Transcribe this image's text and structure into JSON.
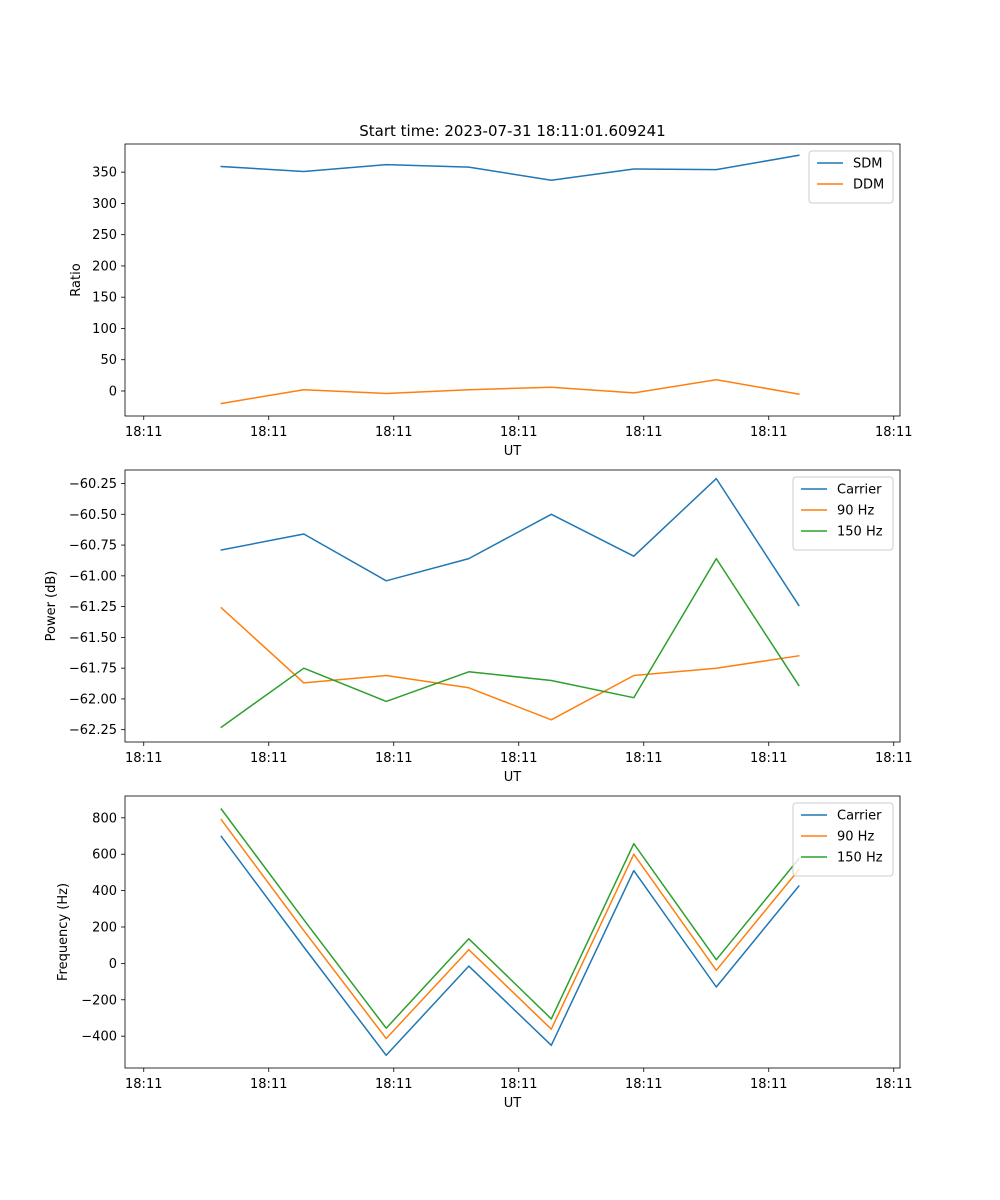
{
  "figure": {
    "title": "Start time: 2023-07-31 18:11:01.609241"
  },
  "chart_data": [
    {
      "type": "line",
      "xlabel": "UT",
      "ylabel": "Ratio",
      "x": [
        0.62,
        1.28,
        1.94,
        2.6,
        3.26,
        3.92,
        4.58,
        5.24
      ],
      "xlim": [
        -0.15,
        6.05
      ],
      "xticks": [
        0,
        1,
        2,
        3,
        4,
        5,
        6
      ],
      "xtick_labels": [
        "18:11",
        "18:11",
        "18:11",
        "18:11",
        "18:11",
        "18:11",
        "18:11"
      ],
      "ylim": [
        -40,
        395
      ],
      "yticks": [
        0,
        50,
        100,
        150,
        200,
        250,
        300,
        350
      ],
      "ytick_labels": [
        "0",
        "50",
        "100",
        "150",
        "200",
        "250",
        "300",
        "350"
      ],
      "legend": "top-right",
      "series": [
        {
          "name": "SDM",
          "color": "#1f77b4",
          "values": [
            359,
            351,
            362,
            358,
            337,
            355,
            354,
            377
          ]
        },
        {
          "name": "DDM",
          "color": "#ff7f0e",
          "values": [
            -20,
            2,
            -4,
            2,
            6,
            -3,
            18,
            -5
          ]
        }
      ]
    },
    {
      "type": "line",
      "xlabel": "UT",
      "ylabel": "Power (dB)",
      "x": [
        0.62,
        1.28,
        1.94,
        2.6,
        3.26,
        3.92,
        4.58,
        5.24
      ],
      "xlim": [
        -0.15,
        6.05
      ],
      "xticks": [
        0,
        1,
        2,
        3,
        4,
        5,
        6
      ],
      "xtick_labels": [
        "18:11",
        "18:11",
        "18:11",
        "18:11",
        "18:11",
        "18:11",
        "18:11"
      ],
      "ylim": [
        -62.35,
        -60.14
      ],
      "yticks": [
        -62.25,
        -62.0,
        -61.75,
        -61.5,
        -61.25,
        -61.0,
        -60.75,
        -60.5,
        -60.25
      ],
      "ytick_labels": [
        "−62.25",
        "−62.00",
        "−61.75",
        "−61.50",
        "−61.25",
        "−61.00",
        "−60.75",
        "−60.50",
        "−60.25"
      ],
      "legend": "top-right",
      "series": [
        {
          "name": "Carrier",
          "color": "#1f77b4",
          "values": [
            -60.79,
            -60.66,
            -61.04,
            -60.86,
            -60.5,
            -60.84,
            -60.21,
            -61.24
          ]
        },
        {
          "name": "90 Hz",
          "color": "#ff7f0e",
          "values": [
            -61.26,
            -61.87,
            -61.81,
            -61.91,
            -62.17,
            -61.81,
            -61.75,
            -61.65
          ]
        },
        {
          "name": "150 Hz",
          "color": "#2ca02c",
          "values": [
            -62.23,
            -61.75,
            -62.02,
            -61.78,
            -61.85,
            -61.99,
            -60.86,
            -61.89
          ]
        }
      ]
    },
    {
      "type": "line",
      "xlabel": "UT",
      "ylabel": "Frequency (Hz)",
      "x": [
        0.62,
        1.28,
        1.94,
        2.6,
        3.26,
        3.92,
        4.58,
        5.24
      ],
      "xlim": [
        -0.15,
        6.05
      ],
      "xticks": [
        0,
        1,
        2,
        3,
        4,
        5,
        6
      ],
      "xtick_labels": [
        "18:11",
        "18:11",
        "18:11",
        "18:11",
        "18:11",
        "18:11",
        "18:11"
      ],
      "ylim": [
        -575,
        920
      ],
      "yticks": [
        -400,
        -200,
        0,
        200,
        400,
        600,
        800
      ],
      "ytick_labels": [
        "−400",
        "−200",
        "0",
        "200",
        "400",
        "600",
        "800"
      ],
      "legend": "top-right",
      "series": [
        {
          "name": "Carrier",
          "color": "#1f77b4",
          "values": [
            698,
            90,
            -505,
            -15,
            -450,
            510,
            -130,
            425
          ]
        },
        {
          "name": "90 Hz",
          "color": "#ff7f0e",
          "values": [
            790,
            180,
            -413,
            75,
            -362,
            600,
            -38,
            515
          ]
        },
        {
          "name": "150 Hz",
          "color": "#2ca02c",
          "values": [
            848,
            240,
            -356,
            135,
            -305,
            658,
            20,
            575
          ]
        }
      ]
    }
  ]
}
